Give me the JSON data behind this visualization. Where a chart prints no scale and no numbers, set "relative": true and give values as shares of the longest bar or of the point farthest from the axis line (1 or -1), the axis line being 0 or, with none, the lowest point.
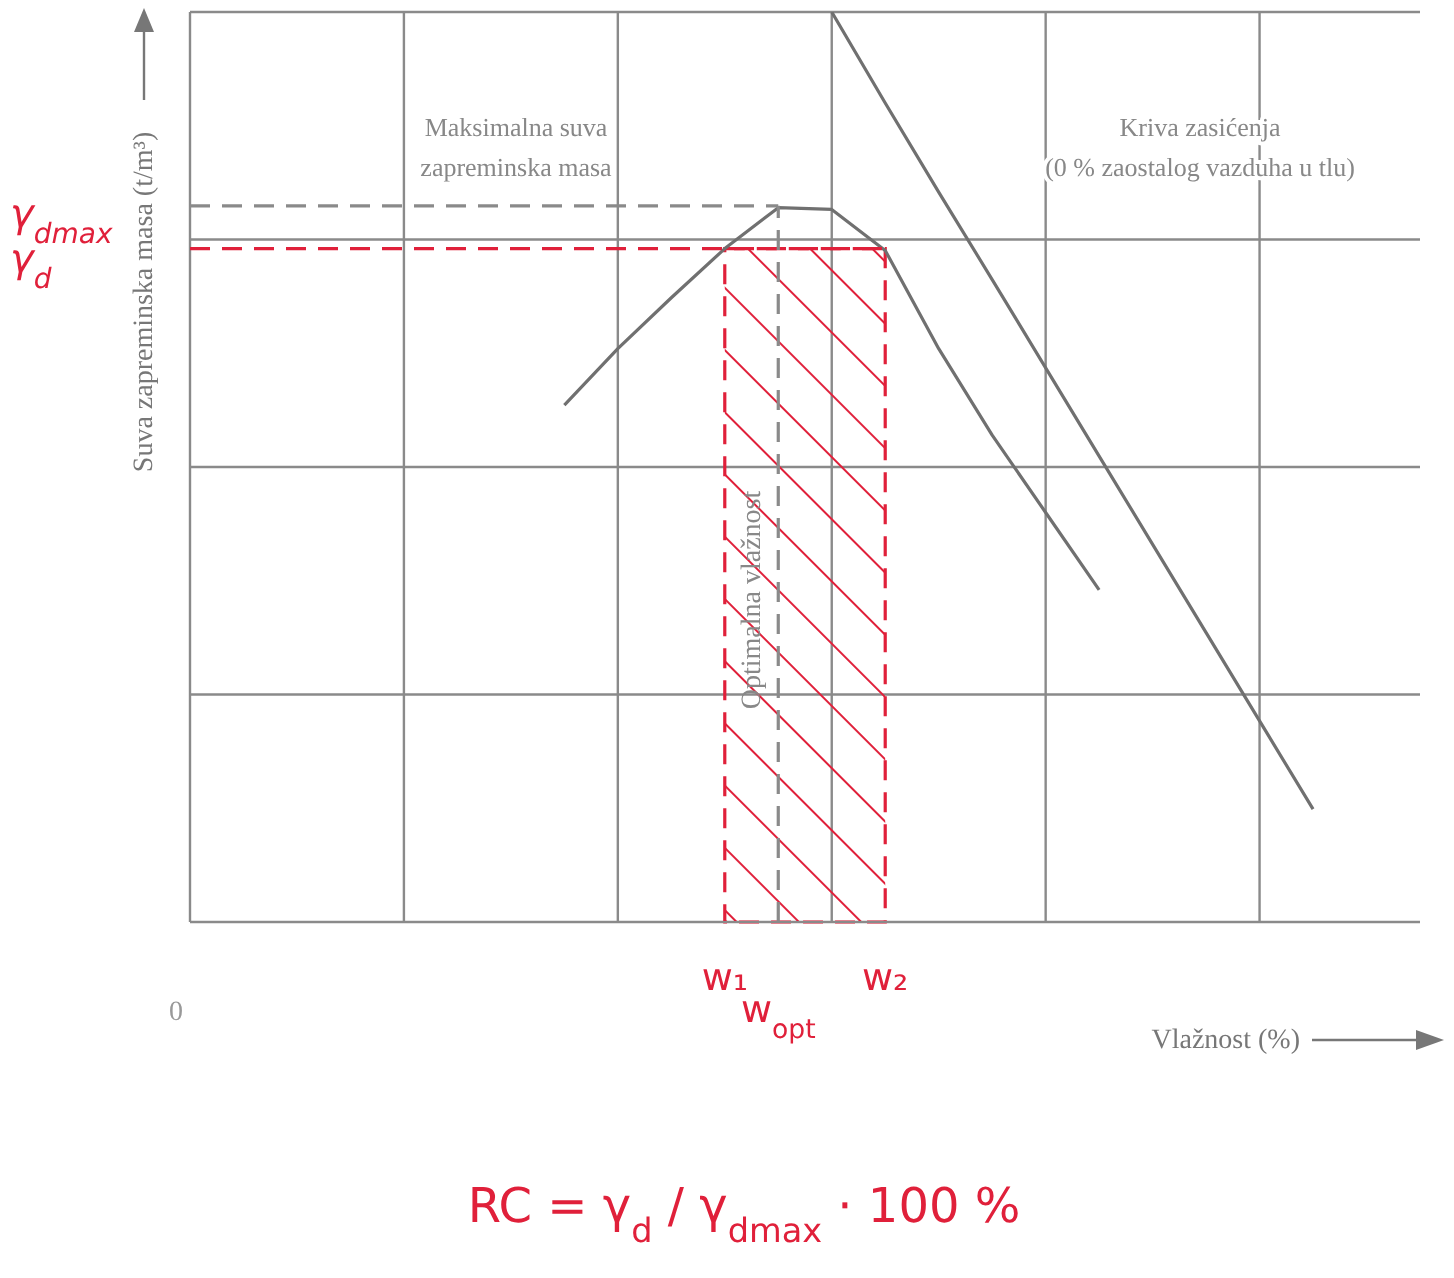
{
  "chart_data": {
    "type": "line",
    "relative": true,
    "xlabel": "Vlažnost (%)",
    "ylabel": "Suva zapreminska masa (t/m³)",
    "categories": [
      null,
      null,
      null,
      null,
      null,
      null,
      null,
      null,
      null,
      null,
      "w₁",
      "w$_{opt}$",
      null,
      "w₂",
      null,
      null,
      null,
      null,
      null,
      null,
      null,
      null,
      null,
      null
    ],
    "grid": true,
    "legend": false,
    "marker": "none",
    "line_style": "solid",
    "series": [
      {
        "color": "#707070",
        "values": [
          null,
          null,
          null,
          null,
          null,
          null,
          null,
          0.568,
          0.63,
          0.686,
          0.74,
          0.785,
          0.783,
          0.738,
          0.63,
          0.535,
          0.45,
          0.365,
          null,
          null,
          null,
          null,
          null,
          null
        ]
      },
      {
        "color": "#707070",
        "values": [
          null,
          null,
          null,
          null,
          null,
          null,
          null,
          null,
          null,
          null,
          null,
          null,
          1,
          0.9,
          0.802,
          0.706,
          0.609,
          0.512,
          0.415,
          0.318,
          0.221,
          0.124,
          null,
          null
        ]
      }
    ],
    "ref_lines": [
      {
        "axis": "y",
        "value": 0.787,
        "label": "γ$_{dmax}$",
        "color": "#8a8a8a",
        "line_style": "dashed"
      },
      {
        "axis": "y",
        "value": 0.74,
        "label": "γ$_{d}$",
        "color": "#e0203a",
        "line_style": "dashed"
      },
      {
        "axis": "x",
        "value": "w$_{opt}$",
        "color": "#8a8a8a",
        "line_style": "dashed"
      }
    ],
    "bands": [
      {
        "axis": "x",
        "from": "w₁",
        "to": "w₂",
        "color": "#e0203a"
      }
    ],
    "annotations": [
      "Maksimalna suva\nzapreminska masa",
      "Kriva zasićenja\n(0 % zaostalog vazduha u tlu)",
      "Optimalna vlažnost",
      "0",
      "RC = γ$_{d}$ / γ$_{dmax}$ · 100 %"
    ]
  }
}
